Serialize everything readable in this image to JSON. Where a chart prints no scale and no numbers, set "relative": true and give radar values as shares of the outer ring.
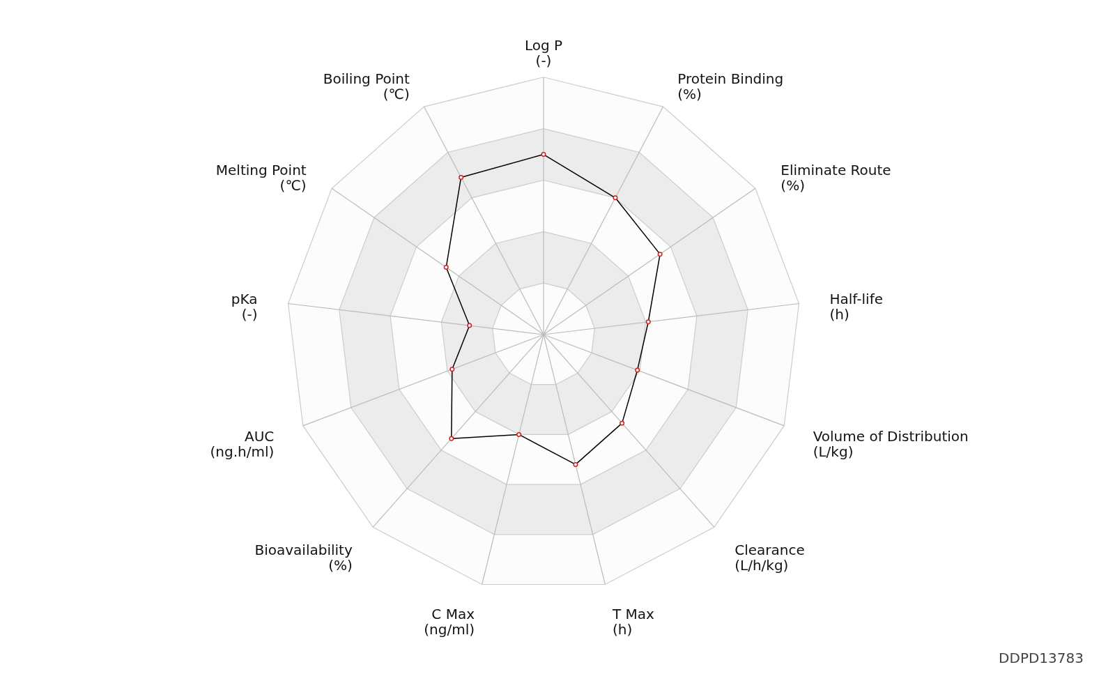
{
  "chart_data": {
    "type": "radar",
    "relative": true,
    "grid": true,
    "marker": "circle",
    "categories": [
      "Log P\n(-)",
      "Protein Binding\n(%)",
      "Eliminate Route\n(%)",
      "Half-life\n(h)",
      "Volume of Distribution\n(L/kg)",
      "Clearance\n(L/h/kg)",
      "T Max\n(h)",
      "C Max\n(ng/ml)",
      "Bioavailability\n(%)",
      "AUC\n(ng.h/ml)",
      "pKa\n(-)",
      "Melting Point\n(℃)",
      "Boiling Point\n(℃)"
    ],
    "series": [
      {
        "color": "#000000",
        "values": [
          0.7,
          0.6,
          0.55,
          0.41,
          0.39,
          0.46,
          0.52,
          0.4,
          0.54,
          0.38,
          0.29,
          0.46,
          0.69
        ]
      }
    ],
    "annotations": [
      "DDPD13783"
    ]
  }
}
